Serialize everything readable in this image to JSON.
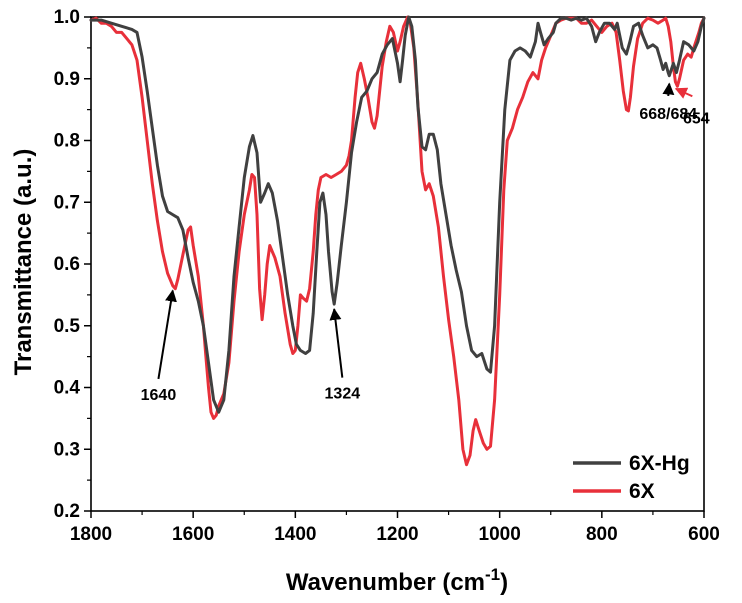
{
  "chart_data": {
    "type": "line",
    "xlabel": "Wavenumber (cm",
    "xlabel_sup": "-1",
    "xlabel_close": ")",
    "ylabel": "Transmittance (a.u.)",
    "xlim": [
      1800,
      600
    ],
    "ylim": [
      0.2,
      1.0
    ],
    "x_ticks": [
      1800,
      1600,
      1400,
      1200,
      1000,
      800,
      600
    ],
    "x_tick_labels": [
      "1800",
      "1600",
      "1400",
      "1200",
      "1000",
      "800",
      "600"
    ],
    "y_ticks": [
      0.2,
      0.3,
      0.4,
      0.5,
      0.6,
      0.7,
      0.8,
      0.9,
      1.0
    ],
    "y_tick_labels": [
      "0.2",
      "0.3",
      "0.4",
      "0.5",
      "0.6",
      "0.7",
      "0.8",
      "0.9",
      "1.0"
    ],
    "grid": false,
    "legend_position": "bottom-right",
    "series": [
      {
        "name": "6X-Hg",
        "color": "#404040",
        "points": [
          [
            1800,
            0.995
          ],
          [
            1780,
            0.995
          ],
          [
            1760,
            0.99
          ],
          [
            1740,
            0.985
          ],
          [
            1720,
            0.98
          ],
          [
            1710,
            0.975
          ],
          [
            1700,
            0.935
          ],
          [
            1690,
            0.88
          ],
          [
            1680,
            0.82
          ],
          [
            1670,
            0.76
          ],
          [
            1660,
            0.71
          ],
          [
            1650,
            0.685
          ],
          [
            1640,
            0.68
          ],
          [
            1630,
            0.675
          ],
          [
            1620,
            0.655
          ],
          [
            1610,
            0.61
          ],
          [
            1600,
            0.57
          ],
          [
            1590,
            0.54
          ],
          [
            1580,
            0.5
          ],
          [
            1570,
            0.44
          ],
          [
            1560,
            0.38
          ],
          [
            1550,
            0.36
          ],
          [
            1540,
            0.38
          ],
          [
            1530,
            0.46
          ],
          [
            1520,
            0.58
          ],
          [
            1510,
            0.66
          ],
          [
            1500,
            0.74
          ],
          [
            1490,
            0.79
          ],
          [
            1483,
            0.808
          ],
          [
            1475,
            0.78
          ],
          [
            1468,
            0.7
          ],
          [
            1460,
            0.715
          ],
          [
            1453,
            0.73
          ],
          [
            1445,
            0.715
          ],
          [
            1435,
            0.67
          ],
          [
            1425,
            0.61
          ],
          [
            1415,
            0.55
          ],
          [
            1405,
            0.5
          ],
          [
            1398,
            0.47
          ],
          [
            1390,
            0.46
          ],
          [
            1380,
            0.455
          ],
          [
            1372,
            0.46
          ],
          [
            1365,
            0.52
          ],
          [
            1358,
            0.62
          ],
          [
            1352,
            0.7
          ],
          [
            1346,
            0.715
          ],
          [
            1340,
            0.68
          ],
          [
            1335,
            0.62
          ],
          [
            1328,
            0.555
          ],
          [
            1324,
            0.535
          ],
          [
            1318,
            0.57
          ],
          [
            1310,
            0.63
          ],
          [
            1300,
            0.7
          ],
          [
            1290,
            0.78
          ],
          [
            1280,
            0.83
          ],
          [
            1270,
            0.87
          ],
          [
            1260,
            0.88
          ],
          [
            1250,
            0.9
          ],
          [
            1240,
            0.91
          ],
          [
            1230,
            0.94
          ],
          [
            1220,
            0.955
          ],
          [
            1210,
            0.965
          ],
          [
            1200,
            0.925
          ],
          [
            1195,
            0.895
          ],
          [
            1190,
            0.93
          ],
          [
            1185,
            0.97
          ],
          [
            1178,
            1.0
          ],
          [
            1172,
            0.985
          ],
          [
            1165,
            0.93
          ],
          [
            1160,
            0.855
          ],
          [
            1152,
            0.79
          ],
          [
            1145,
            0.785
          ],
          [
            1138,
            0.81
          ],
          [
            1130,
            0.81
          ],
          [
            1122,
            0.785
          ],
          [
            1115,
            0.73
          ],
          [
            1105,
            0.68
          ],
          [
            1095,
            0.63
          ],
          [
            1085,
            0.59
          ],
          [
            1075,
            0.555
          ],
          [
            1065,
            0.5
          ],
          [
            1055,
            0.46
          ],
          [
            1045,
            0.45
          ],
          [
            1035,
            0.455
          ],
          [
            1025,
            0.43
          ],
          [
            1018,
            0.425
          ],
          [
            1010,
            0.5
          ],
          [
            1000,
            0.7
          ],
          [
            990,
            0.85
          ],
          [
            980,
            0.93
          ],
          [
            970,
            0.945
          ],
          [
            960,
            0.95
          ],
          [
            950,
            0.945
          ],
          [
            940,
            0.935
          ],
          [
            930,
            0.96
          ],
          [
            925,
            0.99
          ],
          [
            920,
            0.975
          ],
          [
            913,
            0.955
          ],
          [
            905,
            0.965
          ],
          [
            895,
            0.975
          ],
          [
            890,
            0.99
          ],
          [
            880,
            0.998
          ],
          [
            870,
            0.998
          ],
          [
            860,
            0.995
          ],
          [
            850,
            0.998
          ],
          [
            840,
            0.995
          ],
          [
            830,
            0.998
          ],
          [
            820,
            0.985
          ],
          [
            812,
            0.96
          ],
          [
            805,
            0.975
          ],
          [
            795,
            0.99
          ],
          [
            785,
            0.99
          ],
          [
            775,
            0.98
          ],
          [
            770,
            0.99
          ],
          [
            760,
            0.95
          ],
          [
            752,
            0.94
          ],
          [
            745,
            0.96
          ],
          [
            738,
            0.985
          ],
          [
            728,
            0.99
          ],
          [
            720,
            0.97
          ],
          [
            710,
            0.95
          ],
          [
            700,
            0.955
          ],
          [
            692,
            0.95
          ],
          [
            685,
            0.93
          ],
          [
            680,
            0.915
          ],
          [
            675,
            0.925
          ],
          [
            670,
            0.91
          ],
          [
            668,
            0.905
          ],
          [
            660,
            0.925
          ],
          [
            654,
            0.91
          ],
          [
            648,
            0.93
          ],
          [
            640,
            0.96
          ],
          [
            630,
            0.955
          ],
          [
            620,
            0.945
          ],
          [
            612,
            0.96
          ],
          [
            605,
            0.985
          ],
          [
            600,
            0.998
          ]
        ]
      },
      {
        "name": "6X",
        "color": "#e8303a",
        "points": [
          [
            1800,
            0.995
          ],
          [
            1790,
            0.998
          ],
          [
            1780,
            0.99
          ],
          [
            1770,
            0.99
          ],
          [
            1760,
            0.985
          ],
          [
            1750,
            0.975
          ],
          [
            1740,
            0.975
          ],
          [
            1730,
            0.965
          ],
          [
            1720,
            0.955
          ],
          [
            1710,
            0.93
          ],
          [
            1700,
            0.87
          ],
          [
            1690,
            0.8
          ],
          [
            1680,
            0.73
          ],
          [
            1670,
            0.67
          ],
          [
            1660,
            0.62
          ],
          [
            1650,
            0.585
          ],
          [
            1640,
            0.565
          ],
          [
            1635,
            0.56
          ],
          [
            1630,
            0.575
          ],
          [
            1620,
            0.615
          ],
          [
            1610,
            0.655
          ],
          [
            1605,
            0.66
          ],
          [
            1600,
            0.63
          ],
          [
            1590,
            0.58
          ],
          [
            1580,
            0.5
          ],
          [
            1575,
            0.45
          ],
          [
            1570,
            0.4
          ],
          [
            1565,
            0.36
          ],
          [
            1560,
            0.35
          ],
          [
            1555,
            0.355
          ],
          [
            1550,
            0.37
          ],
          [
            1540,
            0.39
          ],
          [
            1530,
            0.44
          ],
          [
            1520,
            0.54
          ],
          [
            1510,
            0.62
          ],
          [
            1500,
            0.68
          ],
          [
            1490,
            0.72
          ],
          [
            1485,
            0.745
          ],
          [
            1480,
            0.74
          ],
          [
            1475,
            0.68
          ],
          [
            1470,
            0.56
          ],
          [
            1465,
            0.51
          ],
          [
            1460,
            0.55
          ],
          [
            1455,
            0.6
          ],
          [
            1450,
            0.63
          ],
          [
            1445,
            0.62
          ],
          [
            1440,
            0.61
          ],
          [
            1430,
            0.58
          ],
          [
            1420,
            0.52
          ],
          [
            1410,
            0.47
          ],
          [
            1405,
            0.455
          ],
          [
            1400,
            0.46
          ],
          [
            1395,
            0.5
          ],
          [
            1390,
            0.55
          ],
          [
            1385,
            0.545
          ],
          [
            1378,
            0.54
          ],
          [
            1372,
            0.56
          ],
          [
            1365,
            0.62
          ],
          [
            1360,
            0.68
          ],
          [
            1355,
            0.72
          ],
          [
            1350,
            0.74
          ],
          [
            1340,
            0.745
          ],
          [
            1330,
            0.74
          ],
          [
            1320,
            0.745
          ],
          [
            1310,
            0.75
          ],
          [
            1300,
            0.76
          ],
          [
            1295,
            0.775
          ],
          [
            1290,
            0.8
          ],
          [
            1283,
            0.87
          ],
          [
            1278,
            0.91
          ],
          [
            1272,
            0.925
          ],
          [
            1265,
            0.9
          ],
          [
            1258,
            0.87
          ],
          [
            1250,
            0.83
          ],
          [
            1245,
            0.82
          ],
          [
            1240,
            0.84
          ],
          [
            1230,
            0.92
          ],
          [
            1222,
            0.96
          ],
          [
            1215,
            0.985
          ],
          [
            1208,
            0.975
          ],
          [
            1200,
            0.945
          ],
          [
            1195,
            0.96
          ],
          [
            1188,
            0.985
          ],
          [
            1180,
            1.0
          ],
          [
            1175,
            0.99
          ],
          [
            1168,
            0.95
          ],
          [
            1160,
            0.86
          ],
          [
            1152,
            0.75
          ],
          [
            1145,
            0.72
          ],
          [
            1138,
            0.73
          ],
          [
            1130,
            0.71
          ],
          [
            1120,
            0.66
          ],
          [
            1110,
            0.58
          ],
          [
            1100,
            0.51
          ],
          [
            1090,
            0.45
          ],
          [
            1080,
            0.38
          ],
          [
            1072,
            0.3
          ],
          [
            1065,
            0.275
          ],
          [
            1058,
            0.29
          ],
          [
            1052,
            0.33
          ],
          [
            1047,
            0.348
          ],
          [
            1040,
            0.33
          ],
          [
            1032,
            0.31
          ],
          [
            1025,
            0.3
          ],
          [
            1018,
            0.305
          ],
          [
            1010,
            0.38
          ],
          [
            1000,
            0.55
          ],
          [
            992,
            0.72
          ],
          [
            985,
            0.8
          ],
          [
            975,
            0.82
          ],
          [
            965,
            0.85
          ],
          [
            955,
            0.87
          ],
          [
            945,
            0.895
          ],
          [
            935,
            0.91
          ],
          [
            925,
            0.9
          ],
          [
            918,
            0.93
          ],
          [
            910,
            0.95
          ],
          [
            900,
            0.97
          ],
          [
            890,
            0.99
          ],
          [
            880,
            0.995
          ],
          [
            870,
            0.998
          ],
          [
            860,
            0.998
          ],
          [
            850,
            0.998
          ],
          [
            840,
            0.99
          ],
          [
            830,
            0.99
          ],
          [
            820,
            0.995
          ],
          [
            810,
            0.985
          ],
          [
            800,
            0.975
          ],
          [
            790,
            0.985
          ],
          [
            780,
            0.99
          ],
          [
            772,
            0.975
          ],
          [
            765,
            0.93
          ],
          [
            758,
            0.88
          ],
          [
            752,
            0.85
          ],
          [
            748,
            0.848
          ],
          [
            744,
            0.87
          ],
          [
            738,
            0.92
          ],
          [
            730,
            0.965
          ],
          [
            720,
            0.99
          ],
          [
            710,
            0.998
          ],
          [
            700,
            0.995
          ],
          [
            690,
            0.99
          ],
          [
            680,
            0.995
          ],
          [
            675,
            0.998
          ],
          [
            670,
            0.985
          ],
          [
            665,
            0.96
          ],
          [
            660,
            0.92
          ],
          [
            656,
            0.895
          ],
          [
            652,
            0.888
          ],
          [
            648,
            0.9
          ],
          [
            640,
            0.93
          ],
          [
            632,
            0.94
          ],
          [
            625,
            0.935
          ],
          [
            618,
            0.955
          ],
          [
            610,
            0.975
          ],
          [
            605,
            0.99
          ],
          [
            600,
            0.998
          ]
        ]
      }
    ],
    "annotations": [
      {
        "text": "1640",
        "color": "#000000",
        "x": 1640,
        "y": 0.565,
        "label_x": 1668,
        "label_y": 0.388
      },
      {
        "text": "1324",
        "color": "#000000",
        "x": 1324,
        "y": 0.535,
        "label_x": 1308,
        "label_y": 0.39
      },
      {
        "text": "668/684",
        "color": "#000000",
        "x": 668,
        "y": 0.9,
        "label_x": 670,
        "label_y": 0.843
      },
      {
        "text": "654",
        "color": "#e8303a",
        "x": 655,
        "y": 0.887,
        "label_x": 615,
        "label_y": 0.836
      }
    ]
  }
}
